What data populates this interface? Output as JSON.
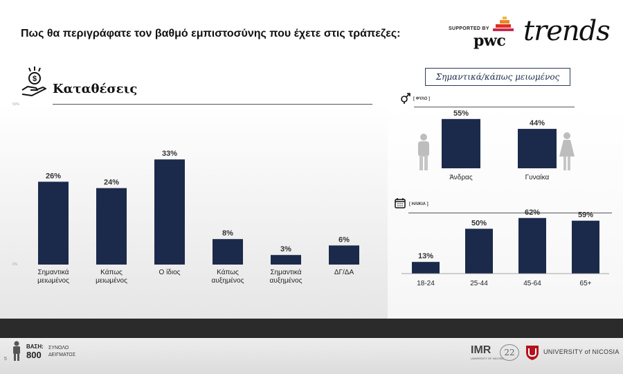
{
  "header": {
    "question": "Πως θα περιγράφατε τον βαθμό εμπιστοσύνης που έχετε στις τράπεζες:",
    "supported_by": "SUPPORTED BY",
    "sponsor": "pwc",
    "brand": "trends"
  },
  "section": {
    "title": "Καταθέσεις",
    "axis_label": "50%",
    "axis_label_bottom": "0%"
  },
  "filter_label": "Σημαντικά/κάπως μειωμένος",
  "colors": {
    "bar": "#1b2a4b",
    "text": "#1a1a1a",
    "pwc_orange": "#e0301e"
  },
  "chart_data": [
    {
      "type": "bar",
      "categories": [
        "Σημαντικά\nμειωμένος",
        "Κάπως\nμειωμένος",
        "Ο ίδιος",
        "Κάπως\nαυξημένος",
        "Σημαντικά\nαυξημένος",
        "ΔΓ/ΔΑ"
      ],
      "values": [
        26,
        24,
        33,
        8,
        3,
        6
      ],
      "value_labels": [
        "26%",
        "24%",
        "33%",
        "8%",
        "3%",
        "6%"
      ],
      "ylim": [
        0,
        50
      ]
    },
    {
      "type": "bar",
      "tag": "[ ΦΥΛΟ ]",
      "categories": [
        "Άνδρας",
        "Γυναίκα"
      ],
      "values": [
        55,
        44
      ],
      "value_labels": [
        "55%",
        "44%"
      ],
      "ylim": [
        0,
        85
      ]
    },
    {
      "type": "bar",
      "tag": "[ ΗΛΙΚΙΑ ]",
      "categories": [
        "18-24",
        "25-44",
        "45-64",
        "65+"
      ],
      "values": [
        13,
        50,
        62,
        59
      ],
      "value_labels": [
        "13%",
        "50%",
        "62%",
        "59%"
      ],
      "ylim": [
        0,
        85
      ]
    }
  ],
  "footer": {
    "base_label": "ΒΑΣΗ:",
    "base_value": "800",
    "base_desc_line1": "ΣΥΝΟΛΟ",
    "base_desc_line2": "ΔΕΙΓΜΑΤΟΣ",
    "page_number": "5",
    "imr": "IMR",
    "imr_sub": "UNIVERSITY OF NICOSIA",
    "anniversary": "22",
    "university": "UNIVERSITY of NICOSIA"
  }
}
